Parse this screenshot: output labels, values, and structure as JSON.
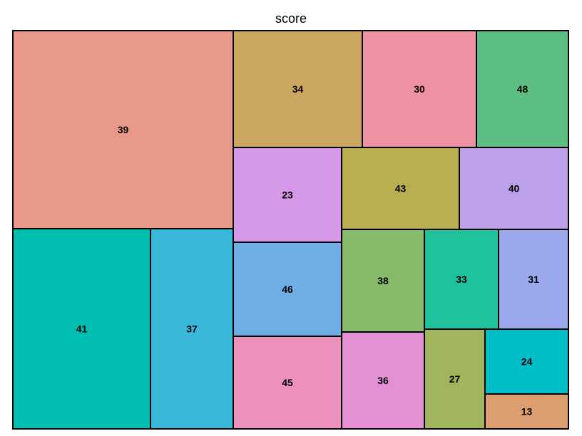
{
  "chart_data": {
    "type": "treemap",
    "title": "score",
    "items": [
      {
        "label": "39",
        "color": "#E8998A"
      },
      {
        "label": "41",
        "color": "#00BFB0"
      },
      {
        "label": "37",
        "color": "#3AB8DA"
      },
      {
        "label": "34",
        "color": "#CCA75F"
      },
      {
        "label": "30",
        "color": "#EE92A4"
      },
      {
        "label": "48",
        "color": "#5CBE82"
      },
      {
        "label": "23",
        "color": "#D598E6"
      },
      {
        "label": "43",
        "color": "#B9AE52"
      },
      {
        "label": "40",
        "color": "#BDA0EA"
      },
      {
        "label": "46",
        "color": "#6FAEE5"
      },
      {
        "label": "45",
        "color": "#EC91BD"
      },
      {
        "label": "38",
        "color": "#84BA6A"
      },
      {
        "label": "36",
        "color": "#E391D4"
      },
      {
        "label": "33",
        "color": "#1FC29A"
      },
      {
        "label": "31",
        "color": "#9BA9EC"
      },
      {
        "label": "27",
        "color": "#A0B55C"
      },
      {
        "label": "24",
        "color": "#00BEC8"
      },
      {
        "label": "13",
        "color": "#DC9E70"
      }
    ]
  }
}
